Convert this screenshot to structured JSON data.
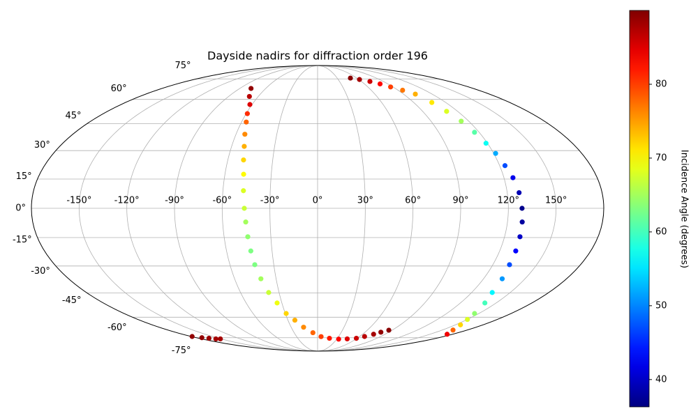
{
  "chart_data": {
    "type": "scatter",
    "projection": "mollweide",
    "title": "Dayside nadirs for diffraction order 196",
    "colorbar_label": "Incidence Angle (degrees)",
    "colormap": "jet",
    "clim": [
      36.3,
      90
    ],
    "cticks": [
      40,
      50,
      60,
      70,
      80
    ],
    "grid": true,
    "xticks": [
      {
        "value": -150,
        "label": "-150°"
      },
      {
        "value": -120,
        "label": "-120°"
      },
      {
        "value": -90,
        "label": "-90°"
      },
      {
        "value": -60,
        "label": "-60°"
      },
      {
        "value": -30,
        "label": "-30°"
      },
      {
        "value": 0,
        "label": "0°"
      },
      {
        "value": 30,
        "label": "30°"
      },
      {
        "value": 60,
        "label": "60°"
      },
      {
        "value": 90,
        "label": "90°"
      },
      {
        "value": 120,
        "label": "120°"
      },
      {
        "value": 150,
        "label": "150°"
      }
    ],
    "yticks": [
      {
        "value": -75,
        "label": "-75°"
      },
      {
        "value": -60,
        "label": "-60°"
      },
      {
        "value": -45,
        "label": "-45°"
      },
      {
        "value": -30,
        "label": "-30°"
      },
      {
        "value": -15,
        "label": "-15°"
      },
      {
        "value": 0,
        "label": "0°"
      },
      {
        "value": 15,
        "label": "15°"
      },
      {
        "value": 30,
        "label": "30°"
      },
      {
        "value": 45,
        "label": "45°"
      },
      {
        "value": 60,
        "label": "60°"
      },
      {
        "value": 75,
        "label": "75°"
      }
    ],
    "x": [
      -77,
      -69,
      -62,
      -59,
      -56.3,
      -53.5,
      -51.2,
      -49.5,
      -47.9,
      -47,
      -46.1,
      -45.4,
      -44.8,
      -44,
      -43,
      -41,
      -38.1,
      -34,
      -29.2,
      -23,
      -15.9,
      -6,
      5,
      18,
      33,
      46,
      58.9,
      67,
      74.7,
      80,
      86,
      -179,
      -172,
      -165,
      -158,
      -151,
      50.3,
      61,
      71.6,
      80,
      87.1,
      95,
      102.4,
      107,
      110.5,
      114,
      116.6,
      119,
      121.3,
      123.5,
      125.8,
      127.5,
      128.6,
      129.3,
      129.9,
      130.6,
      131.4,
      133.5,
      136,
      140.5,
      146,
      150,
      155.4,
      163,
      172.8
    ],
    "y": [
      67.6,
      62,
      56.7,
      51,
      46,
      39,
      32.3,
      25,
      17.5,
      9,
      0,
      -7,
      -14.6,
      -22,
      -29.3,
      -37,
      -44.8,
      -51,
      -57.6,
      -62,
      -66.9,
      -71,
      -74.1,
      -75.5,
      -76.2,
      -76,
      -75.5,
      -74,
      -72.2,
      -70.6,
      -69.1,
      -74,
      -75,
      -75.5,
      -76,
      -76,
      75.7,
      74.5,
      72.9,
      71,
      68.7,
      66.3,
      63.6,
      58,
      52.4,
      46.5,
      40.1,
      34,
      28.5,
      22,
      15.7,
      8,
      0,
      -7,
      -14.6,
      -22,
      -29.3,
      -37,
      -44.8,
      -51,
      -57.6,
      -61.5,
      -65.2,
      -69,
      -72.2
    ],
    "values": [
      89,
      87,
      85,
      81,
      78,
      76,
      74,
      72,
      70,
      68,
      67,
      65,
      64,
      63,
      63,
      65,
      67,
      69,
      72,
      74,
      76,
      78,
      80,
      82,
      83,
      85,
      86,
      87,
      88,
      89,
      89.5,
      89,
      89,
      88.5,
      88,
      88,
      89.5,
      88,
      86,
      83,
      80,
      77,
      74,
      71,
      68,
      65,
      61,
      57,
      52,
      47,
      42,
      39,
      37,
      38,
      40,
      43,
      47,
      51,
      56,
      60,
      64,
      68,
      72,
      78,
      84
    ]
  }
}
